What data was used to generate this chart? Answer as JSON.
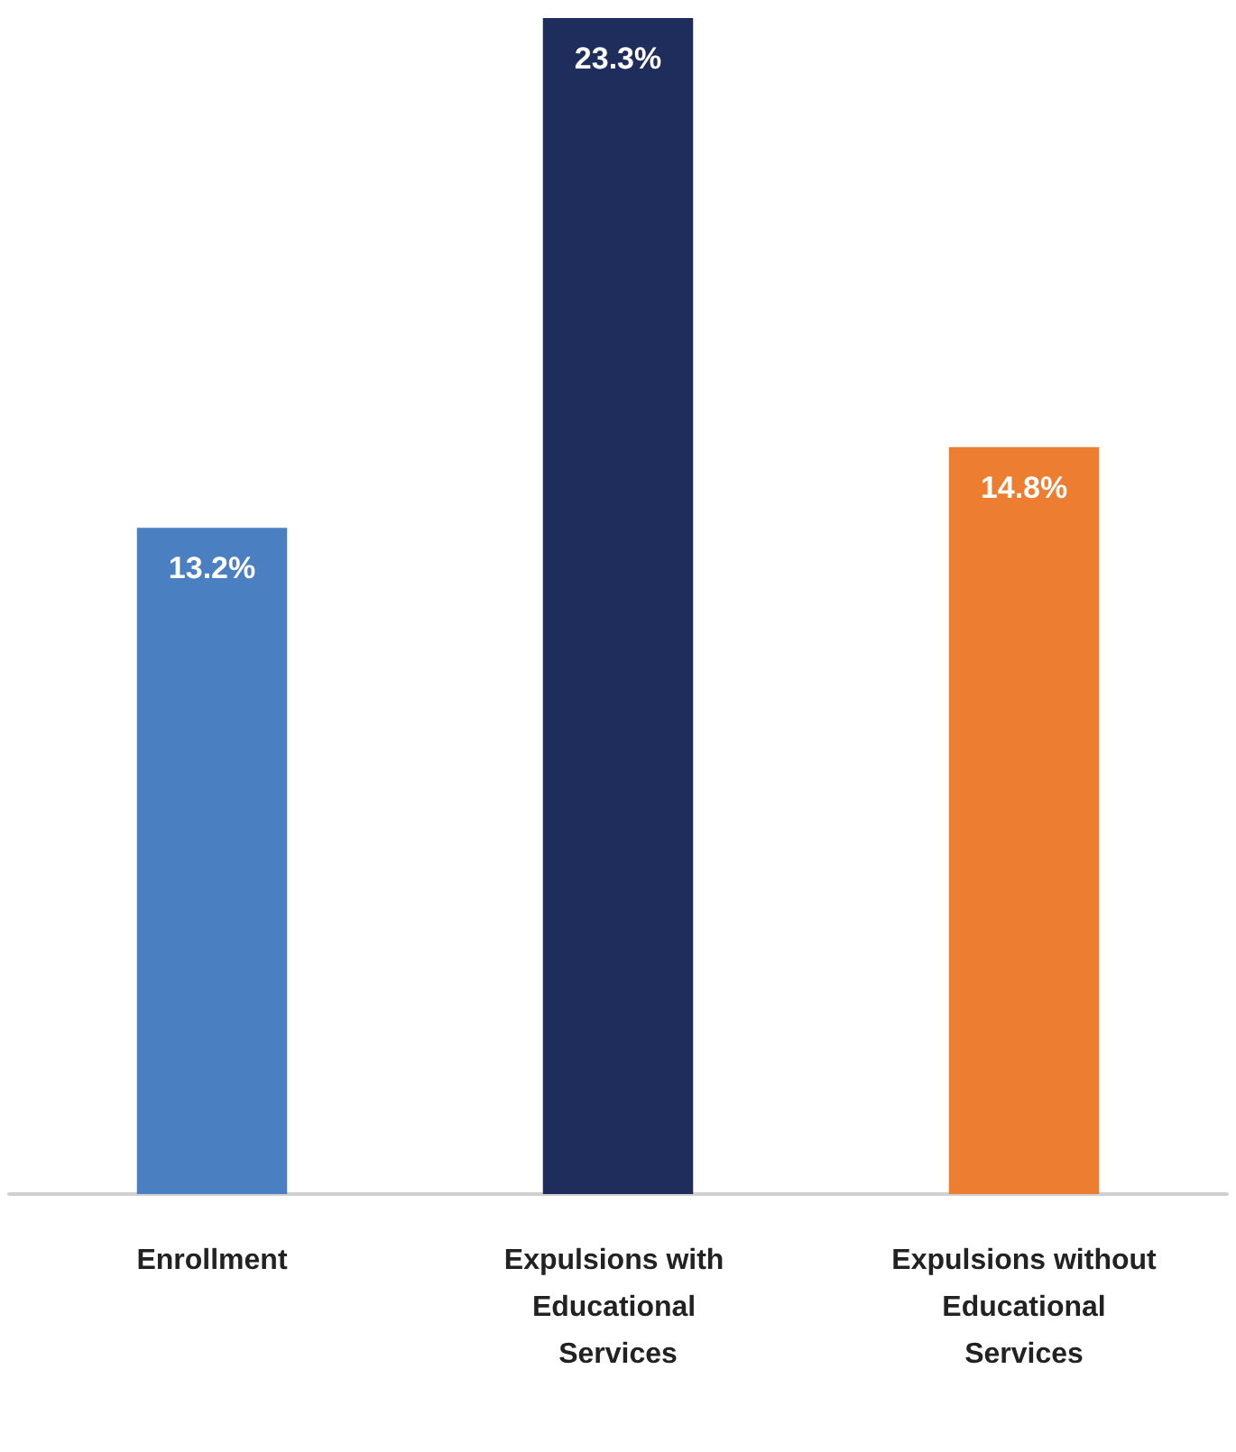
{
  "chart_data": {
    "type": "bar",
    "categories": [
      "Enrollment",
      "Expulsions with Educational Services",
      "Expulsions without Educational Services"
    ],
    "values": [
      13.2,
      23.3,
      14.8
    ],
    "colors": [
      "#4a7fc1",
      "#1f2d5c",
      "#ed7d31"
    ],
    "value_labels": [
      "13.2%",
      "23.3%",
      "14.8%"
    ]
  }
}
